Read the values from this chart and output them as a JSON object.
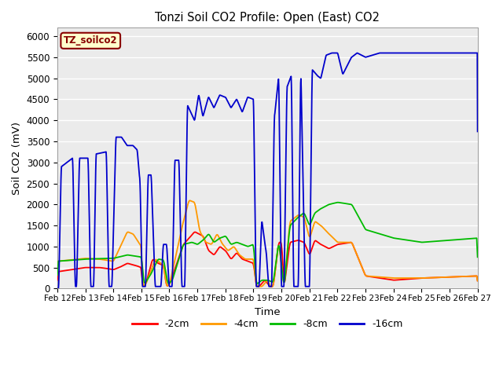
{
  "title": "Tonzi Soil CO2 Profile: Open (East) CO2",
  "xlabel": "Time",
  "ylabel": "Soil CO2 (mV)",
  "ylim": [
    0,
    6200
  ],
  "yticks": [
    0,
    500,
    1000,
    1500,
    2000,
    2500,
    3000,
    3500,
    4000,
    4500,
    5000,
    5500,
    6000
  ],
  "label_box_text": "TZ_soilco2",
  "label_box_color": "#ffffcc",
  "label_box_border": "#880000",
  "bg_color": "#e8e8e8",
  "plot_bg_color": "#ebebeb",
  "series_colors": {
    "-2cm": "#ff0000",
    "-4cm": "#ff9900",
    "-8cm": "#00bb00",
    "-16cm": "#0000cc"
  },
  "xtick_labels": [
    "Feb 12",
    "Feb 13",
    "Feb 14",
    "Feb 15",
    "Feb 16",
    "Feb 17",
    "Feb 18",
    "Feb 19",
    "Feb 20",
    "Feb 21",
    "Feb 22",
    "Feb 23",
    "Feb 24",
    "Feb 25",
    "Feb 26",
    "Feb 27"
  ]
}
